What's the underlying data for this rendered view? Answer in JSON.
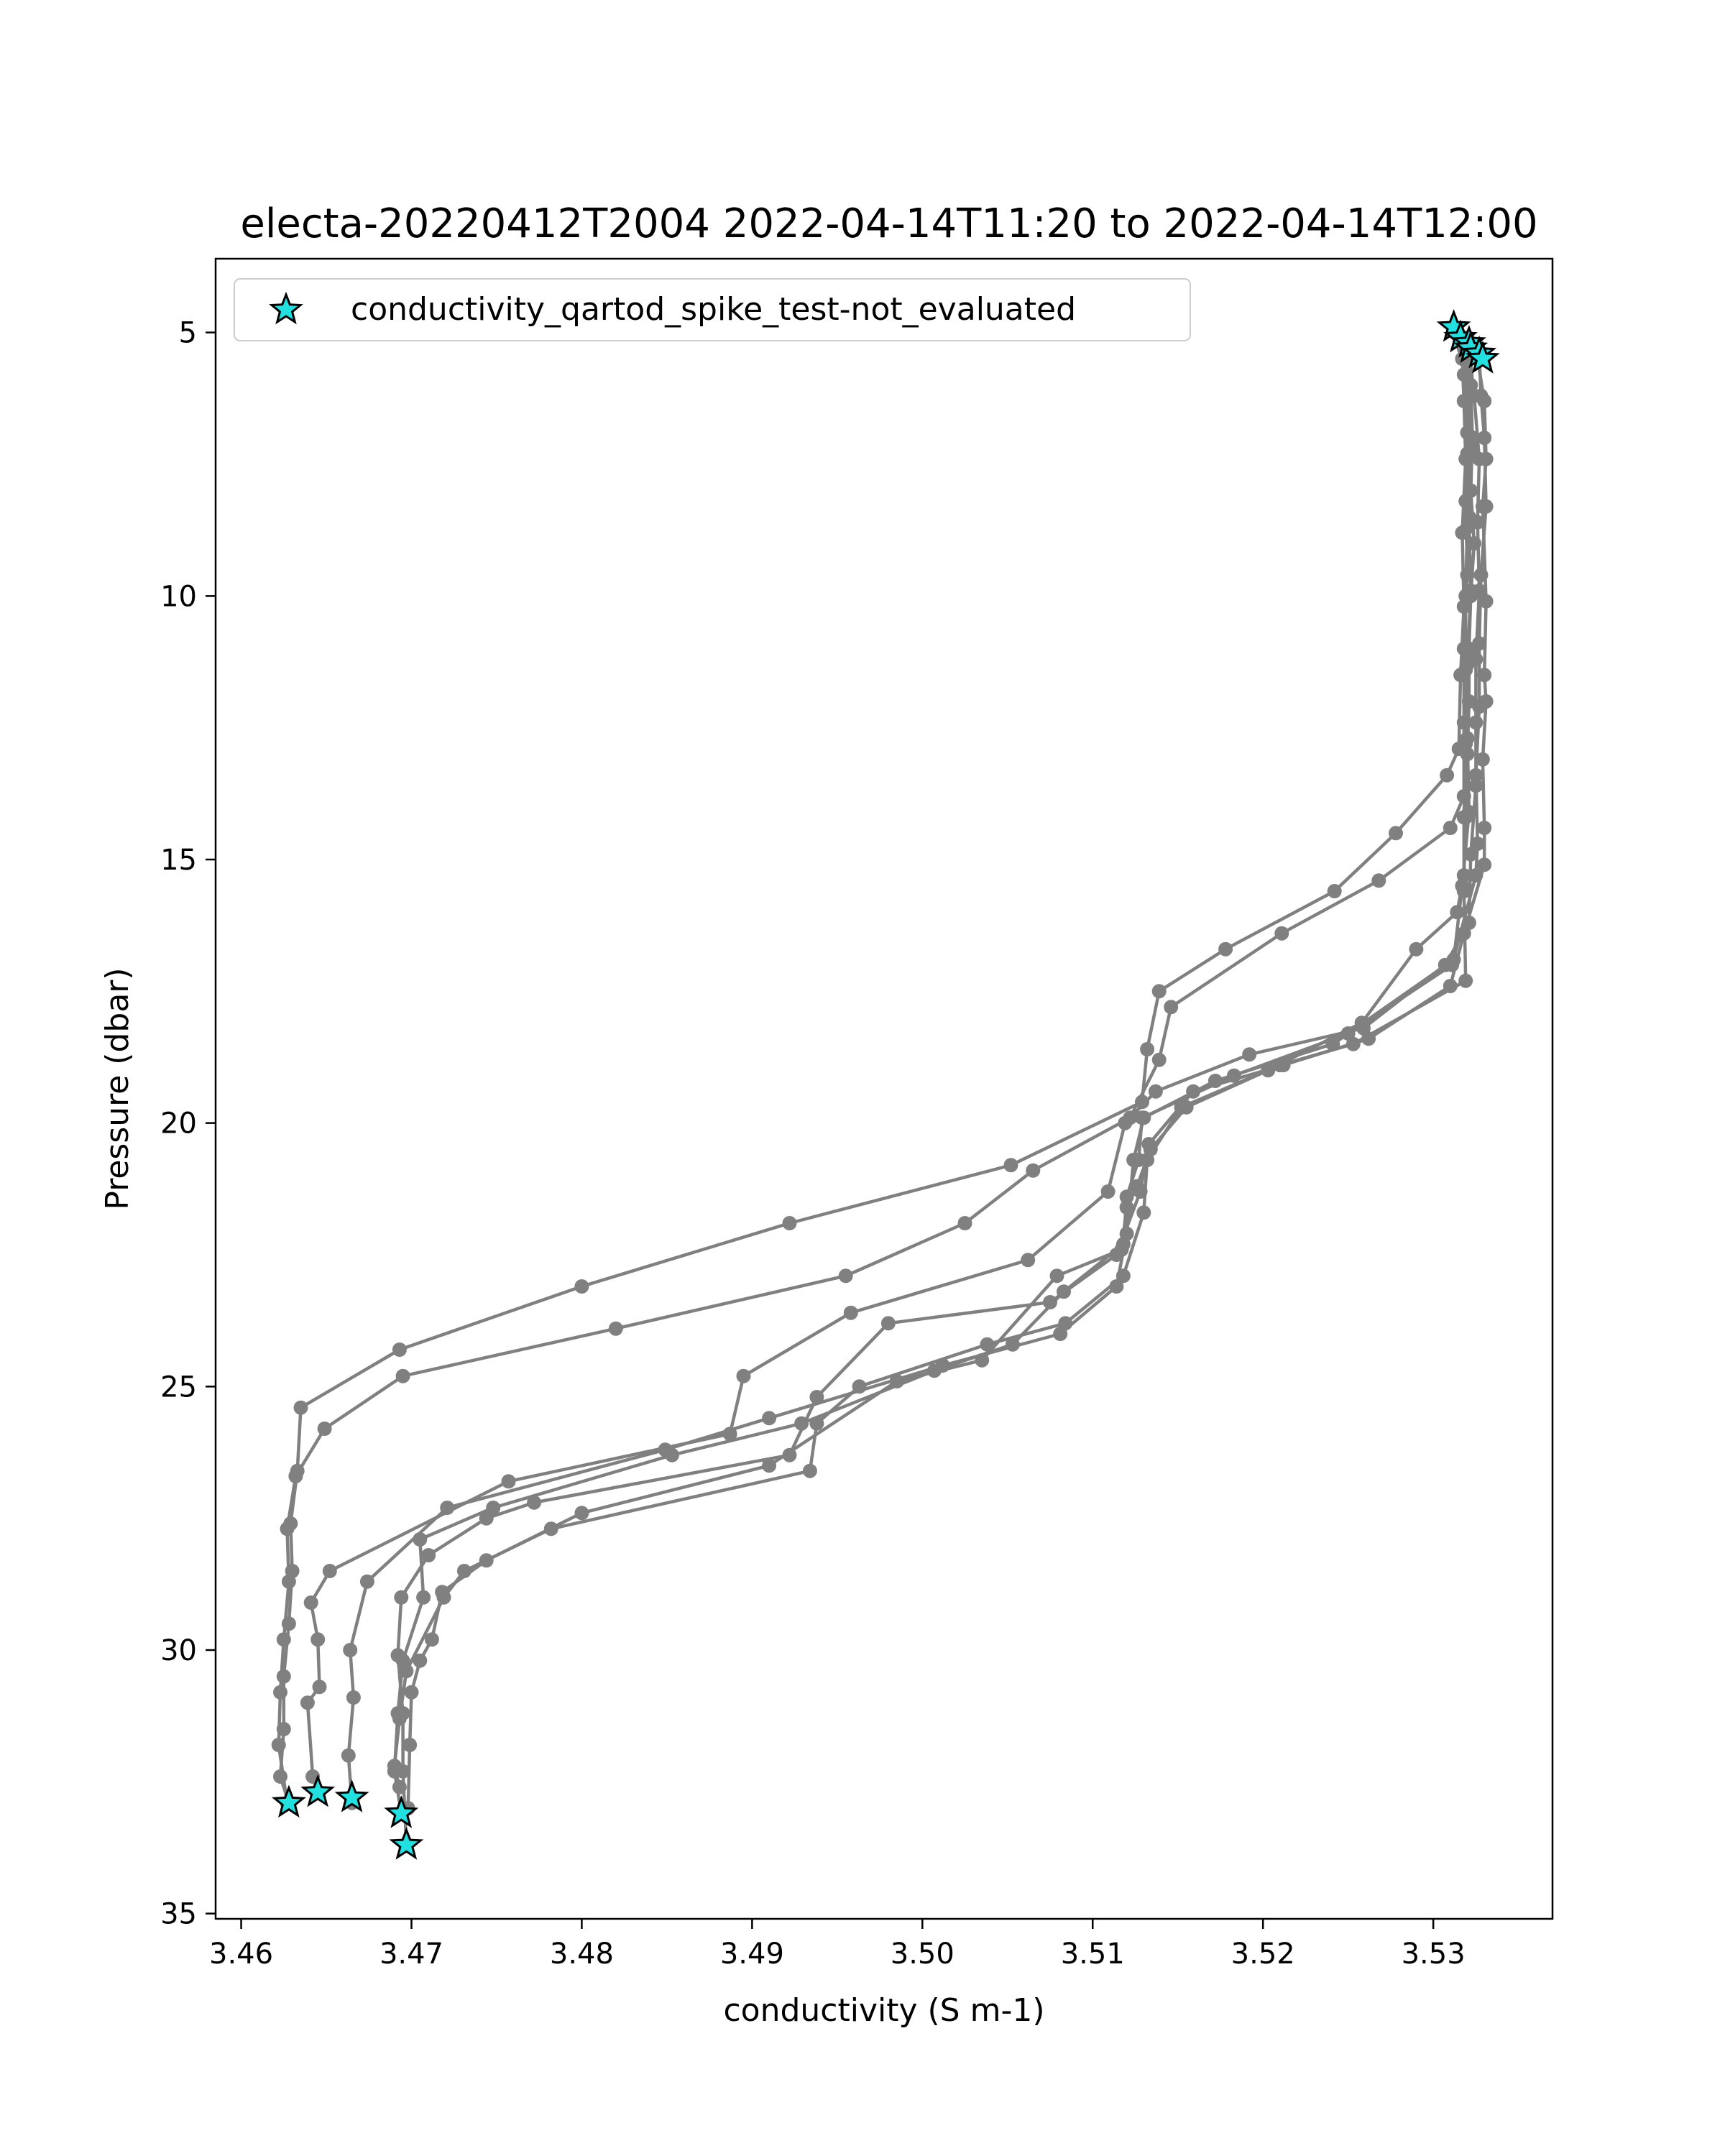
{
  "chart_data": {
    "type": "line",
    "title": "electa-20220412T2004 2022-04-14T11:20 to 2022-04-14T12:00",
    "xlabel": "conductivity (S m-1)",
    "ylabel": "Pressure (dbar)",
    "xlim": [
      3.4585,
      3.537
    ],
    "ylim": [
      35.1,
      3.6
    ],
    "y_inverted": true,
    "x_ticks": [
      3.46,
      3.47,
      3.48,
      3.49,
      3.5,
      3.51,
      3.52,
      3.53
    ],
    "x_tick_labels": [
      "3.46",
      "3.47",
      "3.48",
      "3.49",
      "3.50",
      "3.51",
      "3.52",
      "3.53"
    ],
    "y_ticks": [
      5,
      10,
      15,
      20,
      25,
      30,
      35
    ],
    "y_tick_labels": [
      "5",
      "10",
      "15",
      "20",
      "25",
      "30",
      "35"
    ],
    "grid": false,
    "legend_position": "top-left",
    "line_color": "#808080",
    "star_color": "#22e0e0",
    "series": [
      {
        "points": [
          [
            3.5312,
            4.9
          ],
          [
            3.5317,
            5.5
          ],
          [
            3.5318,
            6.3
          ],
          [
            3.5319,
            7.4
          ],
          [
            3.5317,
            8.8
          ],
          [
            3.5318,
            10.2
          ],
          [
            3.5316,
            11.5
          ],
          [
            3.5315,
            12.9
          ],
          [
            3.5308,
            13.4
          ],
          [
            3.5278,
            14.5
          ],
          [
            3.5242,
            15.6
          ],
          [
            3.5178,
            16.7
          ],
          [
            3.5139,
            17.5
          ],
          [
            3.5132,
            18.6
          ],
          [
            3.5129,
            19.6
          ],
          [
            3.5052,
            20.8
          ],
          [
            3.4922,
            21.9
          ],
          [
            3.48,
            23.1
          ],
          [
            3.4693,
            24.3
          ],
          [
            3.4635,
            25.4
          ],
          [
            3.4633,
            26.6
          ],
          [
            3.4629,
            27.6
          ],
          [
            3.463,
            28.5
          ],
          [
            3.4628,
            29.5
          ],
          [
            3.4625,
            30.5
          ],
          [
            3.4625,
            31.5
          ],
          [
            3.4623,
            32.4
          ],
          [
            3.4628,
            32.9
          ]
        ]
      },
      {
        "points": [
          [
            3.5316,
            5.1
          ],
          [
            3.5318,
            5.8
          ],
          [
            3.532,
            6.9
          ],
          [
            3.5319,
            8.2
          ],
          [
            3.532,
            9.6
          ],
          [
            3.5318,
            11.0
          ],
          [
            3.5318,
            12.4
          ],
          [
            3.5318,
            13.8
          ],
          [
            3.531,
            14.4
          ],
          [
            3.5268,
            15.4
          ],
          [
            3.5211,
            16.4
          ],
          [
            3.5146,
            17.8
          ],
          [
            3.5139,
            18.8
          ],
          [
            3.5122,
            19.9
          ],
          [
            3.5065,
            20.9
          ],
          [
            3.5025,
            21.9
          ],
          [
            3.4955,
            22.9
          ],
          [
            3.482,
            23.9
          ],
          [
            3.4695,
            24.8
          ],
          [
            3.4649,
            25.8
          ],
          [
            3.4632,
            26.7
          ],
          [
            3.4627,
            27.7
          ],
          [
            3.4628,
            28.7
          ],
          [
            3.4625,
            29.8
          ],
          [
            3.4623,
            30.8
          ],
          [
            3.4622,
            31.8
          ],
          [
            3.4627,
            32.9
          ]
        ]
      },
      {
        "points": [
          [
            3.5321,
            5.3
          ],
          [
            3.5324,
            6.2
          ],
          [
            3.5327,
            7.4
          ],
          [
            3.5326,
            8.6
          ],
          [
            3.5327,
            9.9
          ],
          [
            3.5325,
            11.2
          ],
          [
            3.5325,
            12.4
          ],
          [
            3.5325,
            13.6
          ],
          [
            3.5322,
            14.9
          ],
          [
            3.5321,
            16.2
          ],
          [
            3.5307,
            17.0
          ],
          [
            3.5259,
            18.2
          ],
          [
            3.5192,
            18.7
          ],
          [
            3.5137,
            19.4
          ],
          [
            3.5119,
            20.0
          ],
          [
            3.5109,
            21.3
          ],
          [
            3.5062,
            22.6
          ],
          [
            3.4958,
            23.6
          ],
          [
            3.4895,
            24.8
          ],
          [
            3.4887,
            25.9
          ],
          [
            3.4757,
            26.8
          ],
          [
            3.4652,
            28.5
          ],
          [
            3.4641,
            29.1
          ],
          [
            3.4645,
            29.8
          ],
          [
            3.4646,
            30.7
          ],
          [
            3.4639,
            31.0
          ],
          [
            3.4642,
            32.4
          ],
          [
            3.4645,
            32.7
          ]
        ]
      },
      {
        "points": [
          [
            3.5326,
            5.5
          ],
          [
            3.533,
            6.3
          ],
          [
            3.5331,
            7.4
          ],
          [
            3.5329,
            8.3
          ],
          [
            3.5331,
            10.1
          ],
          [
            3.533,
            11.5
          ],
          [
            3.5331,
            12.0
          ],
          [
            3.5329,
            13.1
          ],
          [
            3.533,
            14.4
          ],
          [
            3.533,
            15.1
          ],
          [
            3.5318,
            16.4
          ],
          [
            3.531,
            17.4
          ],
          [
            3.5262,
            18.4
          ],
          [
            3.5212,
            18.9
          ],
          [
            3.5159,
            19.4
          ],
          [
            3.5133,
            20.4
          ],
          [
            3.5128,
            21.3
          ],
          [
            3.5114,
            22.5
          ],
          [
            3.5075,
            23.4
          ],
          [
            3.498,
            23.8
          ],
          [
            3.4938,
            25.2
          ],
          [
            3.4922,
            26.3
          ],
          [
            3.4772,
            27.2
          ],
          [
            3.4744,
            27.5
          ],
          [
            3.471,
            28.2
          ],
          [
            3.4694,
            29.0
          ],
          [
            3.4692,
            30.1
          ],
          [
            3.4695,
            31.2
          ],
          [
            3.4695,
            32.3
          ],
          [
            3.4697,
            33.7
          ]
        ]
      },
      {
        "points": [
          [
            3.5321,
            5.2
          ],
          [
            3.5322,
            6.0
          ],
          [
            3.5323,
            7.0
          ],
          [
            3.5322,
            8.0
          ],
          [
            3.5324,
            9.0
          ],
          [
            3.5322,
            10.0
          ],
          [
            3.5321,
            11.0
          ],
          [
            3.5321,
            12.0
          ],
          [
            3.532,
            13.0
          ],
          [
            3.5319,
            14.2
          ],
          [
            3.5318,
            15.3
          ],
          [
            3.5314,
            16.0
          ],
          [
            3.529,
            16.7
          ],
          [
            3.5258,
            18.1
          ],
          [
            3.5203,
            19.0
          ],
          [
            3.5155,
            19.7
          ],
          [
            3.5134,
            20.5
          ],
          [
            3.5126,
            21.2
          ],
          [
            3.512,
            21.6
          ],
          [
            3.5117,
            22.4
          ],
          [
            3.5079,
            22.9
          ],
          [
            3.5035,
            24.5
          ],
          [
            3.4985,
            24.9
          ],
          [
            3.491,
            26.5
          ],
          [
            3.48,
            27.4
          ],
          [
            3.4744,
            28.3
          ],
          [
            3.4718,
            28.9
          ],
          [
            3.4712,
            29.8
          ],
          [
            3.4705,
            30.2
          ],
          [
            3.47,
            30.8
          ],
          [
            3.4699,
            31.8
          ],
          [
            3.4698,
            33.0
          ]
        ]
      },
      {
        "points": [
          [
            3.5327,
            5.4
          ],
          [
            3.5328,
            6.2
          ],
          [
            3.533,
            7.0
          ],
          [
            3.5331,
            8.3
          ],
          [
            3.5328,
            9.6
          ],
          [
            3.5327,
            10.9
          ],
          [
            3.5327,
            12.1
          ],
          [
            3.5325,
            13.4
          ],
          [
            3.5326,
            14.7
          ],
          [
            3.5325,
            15.3
          ],
          [
            3.5311,
            17.0
          ],
          [
            3.5241,
            18.5
          ],
          [
            3.5172,
            19.2
          ],
          [
            3.513,
            19.9
          ],
          [
            3.5124,
            20.7
          ],
          [
            3.512,
            22.1
          ],
          [
            3.5114,
            23.1
          ],
          [
            3.5081,
            24.0
          ],
          [
            3.5012,
            24.6
          ],
          [
            3.491,
            25.6
          ],
          [
            3.4849,
            26.2
          ],
          [
            3.4721,
            27.3
          ],
          [
            3.4674,
            28.7
          ],
          [
            3.4664,
            30.0
          ],
          [
            3.4666,
            30.9
          ],
          [
            3.4663,
            32.0
          ],
          [
            3.4665,
            32.9
          ]
        ]
      },
      {
        "points": [
          [
            3.532,
            5.1
          ],
          [
            3.5321,
            6.0
          ],
          [
            3.5322,
            7.2
          ],
          [
            3.5321,
            8.5
          ],
          [
            3.5322,
            9.9
          ],
          [
            3.532,
            11.3
          ],
          [
            3.532,
            12.7
          ],
          [
            3.5321,
            14.1
          ],
          [
            3.5317,
            15.5
          ],
          [
            3.5312,
            16.9
          ],
          [
            3.525,
            18.3
          ],
          [
            3.5183,
            19.1
          ],
          [
            3.5129,
            19.9
          ],
          [
            3.5127,
            20.7
          ],
          [
            3.512,
            21.4
          ],
          [
            3.5118,
            22.3
          ],
          [
            3.5083,
            23.2
          ],
          [
            3.5053,
            24.2
          ],
          [
            3.5007,
            24.7
          ],
          [
            3.4929,
            25.7
          ],
          [
            3.4853,
            26.3
          ],
          [
            3.4748,
            27.3
          ],
          [
            3.4705,
            27.9
          ],
          [
            3.4707,
            29.0
          ],
          [
            3.4695,
            30.2
          ],
          [
            3.4692,
            31.2
          ],
          [
            3.469,
            32.3
          ],
          [
            3.4694,
            33.1
          ]
        ]
      },
      {
        "points": [
          [
            3.5318,
            5.3
          ],
          [
            3.5321,
            6.1
          ],
          [
            3.532,
            7.3
          ],
          [
            3.532,
            8.7
          ],
          [
            3.5319,
            10.0
          ],
          [
            3.5319,
            11.4
          ],
          [
            3.5319,
            12.8
          ],
          [
            3.5318,
            14.2
          ],
          [
            3.5318,
            15.6
          ],
          [
            3.5319,
            17.3
          ],
          [
            3.5253,
            18.5
          ],
          [
            3.521,
            18.9
          ],
          [
            3.5152,
            19.7
          ],
          [
            3.5132,
            20.7
          ],
          [
            3.513,
            21.7
          ],
          [
            3.5118,
            22.9
          ],
          [
            3.5084,
            23.8
          ],
          [
            3.5038,
            24.2
          ],
          [
            3.4963,
            25.0
          ],
          [
            3.4938,
            25.7
          ],
          [
            3.4934,
            26.6
          ],
          [
            3.4782,
            27.7
          ],
          [
            3.4731,
            28.5
          ],
          [
            3.4719,
            29.0
          ],
          [
            3.4697,
            30.4
          ],
          [
            3.4693,
            31.3
          ],
          [
            3.469,
            32.2
          ],
          [
            3.4693,
            32.6
          ]
        ]
      }
    ],
    "stars": [
      [
        3.5312,
        4.9
      ],
      [
        3.5316,
        5.1
      ],
      [
        3.5321,
        5.2
      ],
      [
        3.5322,
        5.3
      ],
      [
        3.5327,
        5.4
      ],
      [
        3.5329,
        5.5
      ],
      [
        3.4628,
        32.9
      ],
      [
        3.4645,
        32.7
      ],
      [
        3.4665,
        32.8
      ],
      [
        3.4694,
        33.1
      ],
      [
        3.4697,
        33.7
      ]
    ],
    "legend": [
      {
        "label": "conductivity_qartod_spike_test-not_evaluated",
        "icon": "star-icon"
      }
    ]
  }
}
